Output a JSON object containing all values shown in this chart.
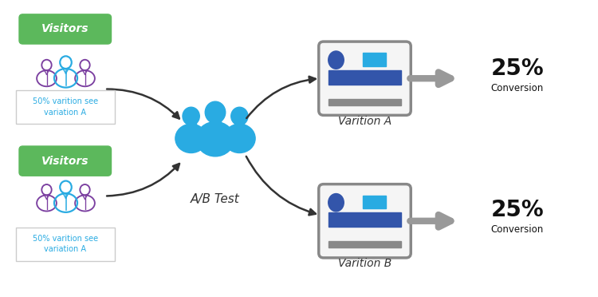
{
  "bg_color": "#ffffff",
  "visitors_label": "Visitors",
  "visitors_bg": "#5cb85c",
  "visitors_text_color": "#ffffff",
  "box_label_a": "Varition A",
  "box_label_b": "Varition B",
  "ab_test_label": "A/B Test",
  "conversion_pct": "25%",
  "conversion_label": "Conversion",
  "conversion_color": "#111111",
  "sub_label_top": "50% varition see\nvariation A",
  "sub_label_bottom": "50% varition see\nvariation A",
  "sub_label_color": "#29abe2",
  "sub_label_bg": "#ffffff",
  "box_fill": "#f5f5f5",
  "box_stroke": "#888888",
  "icon_blue": "#29abe2",
  "icon_purple": "#7b3fa0",
  "people_blue": "#29abe2",
  "oval_dark_blue": "#3355aa",
  "rect_mid_blue": "#3355aa",
  "rect_cyan": "#29abe2",
  "bar_gray": "#888888",
  "ab_test_color": "#333333",
  "varition_label_color": "#333333",
  "arrow_gray": "#999999",
  "arrow_black": "#333333"
}
